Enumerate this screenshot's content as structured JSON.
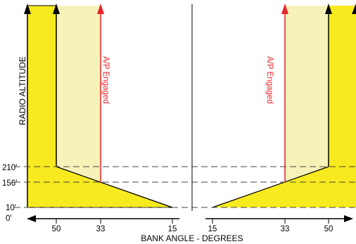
{
  "diagram": {
    "y_axis_label": "RADIO ALTITUDE",
    "x_axis_label": "BANK ANGLE - DEGREES",
    "altitude_labels": [
      "210'",
      "156'",
      "10'",
      "0'"
    ],
    "bank_ticks_left": [
      "50",
      "33",
      "15"
    ],
    "bank_ticks_right": [
      "15",
      "33",
      "50"
    ],
    "engaged_label_left": "A/P Engaged",
    "engaged_label_right": "A/P Engaged",
    "colors": {
      "outer_fill": "#f7ea1e",
      "inner_fill": "#f7f3b8",
      "engaged_arrow": "#e8232a",
      "line": "#000000",
      "dashed": "#444444"
    }
  }
}
